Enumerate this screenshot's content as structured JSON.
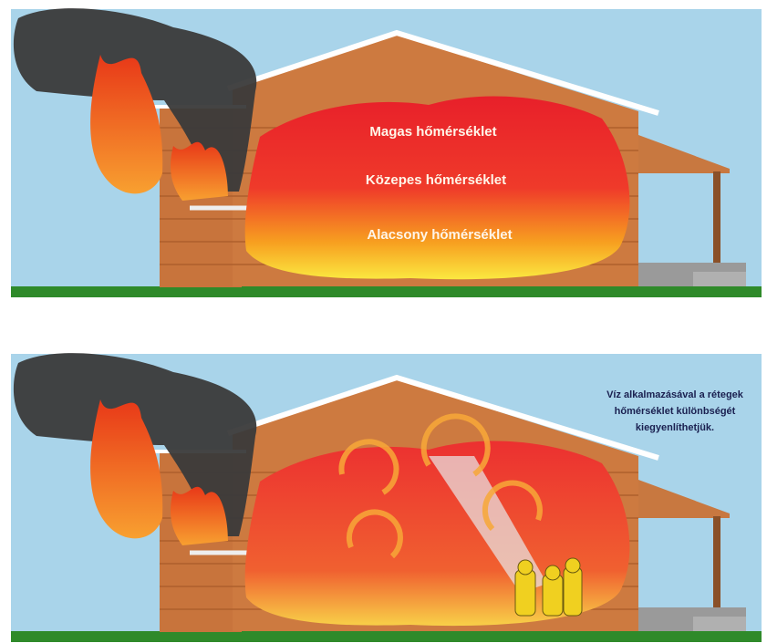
{
  "panel_top": {
    "labels": [
      "Magas hőmérséklet",
      "Közepes hőmérséklet",
      "Alacsony hőmérséklet"
    ]
  },
  "panel_bottom": {
    "caption_lines": [
      "Víz alkalmazásával a rétegek",
      "hőmérséklet különbségét",
      "kiegyenlíthetjük."
    ]
  }
}
